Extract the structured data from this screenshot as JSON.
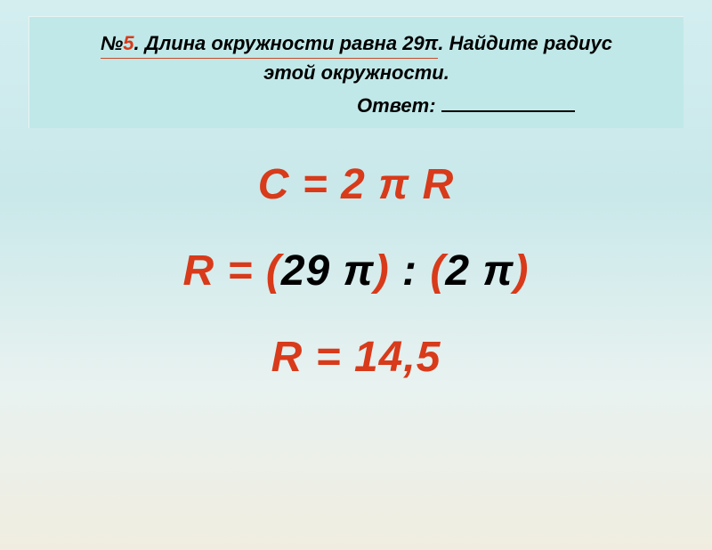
{
  "header": {
    "num_symbol": "№",
    "num": "5",
    "q_part1": ". Длина окружности равна ",
    "q_value": "29π",
    "q_part2": ". Найдите радиус",
    "q_line2": "этой окружности.",
    "answer_label": "Ответ:"
  },
  "formulas": {
    "f1": "C = 2 π R",
    "f2_r": "R = ",
    "f2_p1": "(",
    "f2_v1": "29 π",
    "f2_p2": ")",
    "f2_mid": "  : ",
    "f2_p3": "(",
    "f2_v2": "2 π",
    "f2_p4": ")",
    "f3": "R = 14,5"
  },
  "colors": {
    "accent": "#d83a1a",
    "header_bg": "#c1e8e8"
  }
}
